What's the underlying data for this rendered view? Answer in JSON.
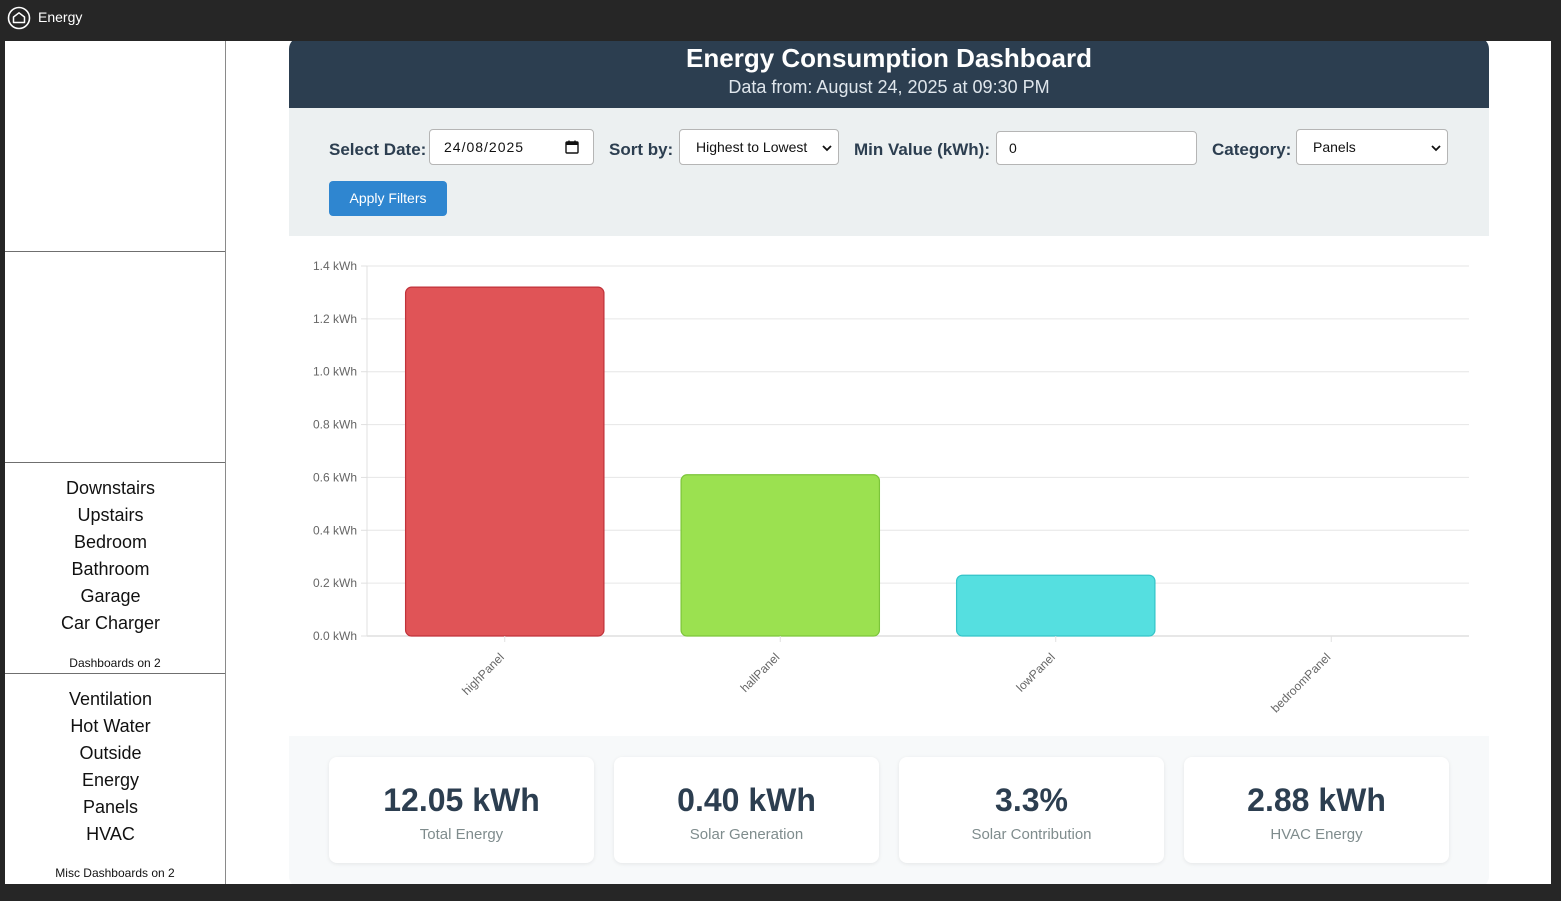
{
  "window": {
    "title": "Energy",
    "icon": "home-icon"
  },
  "sidebar": {
    "group1": {
      "items": [
        "Downstairs",
        "Upstairs",
        "Bedroom",
        "Bathroom",
        "Garage",
        "Car Charger"
      ],
      "caption": "Dashboards on 2"
    },
    "group2": {
      "items": [
        "Ventilation",
        "Hot Water",
        "Outside",
        "Energy",
        "Panels",
        "HVAC"
      ],
      "caption": "Misc Dashboards on 2"
    }
  },
  "header": {
    "title": "Energy Consumption Dashboard",
    "subtitle": "Data from: August 24, 2025 at 09:30 PM"
  },
  "filters": {
    "date_label": "Select Date:",
    "date_value": "24/08/2025",
    "sort_label": "Sort by:",
    "sort_value": "Highest to Lowest",
    "min_label": "Min Value (kWh):",
    "min_value": "0",
    "category_label": "Category:",
    "category_value": "Panels",
    "apply_label": "Apply Filters"
  },
  "chart_data": {
    "type": "bar",
    "categories": [
      "highPanel",
      "hallPanel",
      "lowPanel",
      "bedroomPanel"
    ],
    "values": [
      1.32,
      0.61,
      0.23,
      0.0
    ],
    "colors": [
      "#e05457",
      "#9be150",
      "#55dfe0",
      "#c9a0f0"
    ],
    "border_colors": [
      "#c0323a",
      "#7cc53a",
      "#34c4c8",
      "#a070d0"
    ],
    "y_ticks": [
      "0.0 kWh",
      "0.2 kWh",
      "0.4 kWh",
      "0.6 kWh",
      "0.8 kWh",
      "1.0 kWh",
      "1.2 kWh",
      "1.4 kWh"
    ],
    "ylim": [
      0,
      1.4
    ],
    "grid": true,
    "xlabel": "",
    "ylabel": ""
  },
  "stats": [
    {
      "value": "12.05 kWh",
      "label": "Total Energy"
    },
    {
      "value": "0.40 kWh",
      "label": "Solar Generation"
    },
    {
      "value": "3.3%",
      "label": "Solar Contribution"
    },
    {
      "value": "2.88 kWh",
      "label": "HVAC Energy"
    }
  ],
  "colors": {
    "header_bg": "#2c3e50",
    "button_bg": "#2f86d0",
    "filters_bg": "#ecf0f1"
  }
}
